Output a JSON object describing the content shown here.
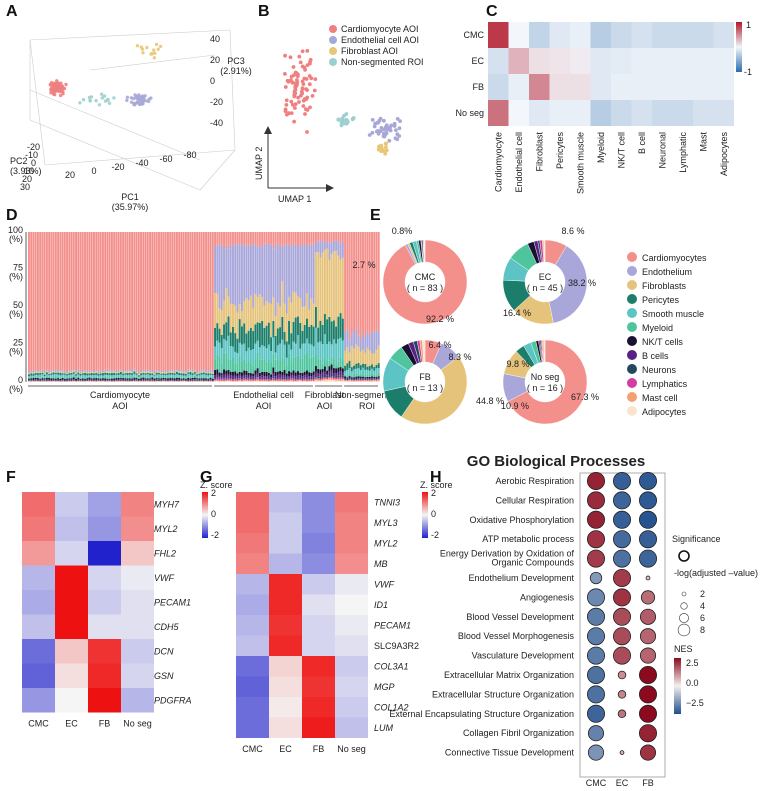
{
  "panels": {
    "A": "A",
    "B": "B",
    "C": "C",
    "D": "D",
    "E": "E",
    "F": "F",
    "G": "G",
    "H": "H"
  },
  "colors": {
    "cmc": "#F08080",
    "ec": "#A8A8D8",
    "fb": "#E8C878",
    "nonseg": "#9ECFD0",
    "cardiomyocytes": "#F4908C",
    "endothelium": "#A9A7DA",
    "fibroblasts": "#E5C37A",
    "pericytes": "#1B7E6A",
    "smooth_muscle": "#5CC4C4",
    "myeloid": "#4FC59E",
    "nkt": "#1A1030",
    "bcells": "#5B1F87",
    "neurons": "#24485E",
    "lymphatics": "#D23FA0",
    "mast": "#F4A070",
    "adipocytes": "#FBE3D0"
  },
  "chart_data": [
    {
      "panel": "A",
      "type": "scatter",
      "axis_labels": {
        "pc1": "PC1\n(35.97%)",
        "pc2": "PC2\n(3.93%)",
        "pc3": "PC3\n(2.91%)"
      },
      "pc1_ticks": [
        "20",
        "0",
        "-20",
        "-40",
        "-60",
        "-80"
      ],
      "pc2_ticks": [
        "-20",
        "-10",
        "0",
        "10",
        "20",
        "30"
      ],
      "pc3_ticks": [
        "40",
        "20",
        "0",
        "-20",
        "-40"
      ],
      "groups": [
        {
          "name": "Cardiomyocyte AOI",
          "n": 83,
          "center": [
            45,
            0,
            -5
          ]
        },
        {
          "name": "Endothelial cell AOI",
          "n": 45,
          "center": [
            -30,
            0,
            0
          ]
        },
        {
          "name": "Fibroblast AOI",
          "n": 13,
          "center": [
            -45,
            0,
            25
          ]
        },
        {
          "name": "Non-segmented ROI",
          "n": 16,
          "center": [
            -10,
            0,
            0
          ]
        }
      ]
    },
    {
      "panel": "B",
      "type": "scatter",
      "xlabel": "UMAP 1",
      "ylabel": "UMAP 2",
      "legend": [
        "Cardiomyocyte AOI",
        "Endothelial cell AOI",
        "Fibroblast AOI",
        "Non-segmented ROI"
      ],
      "legend_position": "top-right"
    },
    {
      "panel": "C",
      "type": "heatmap",
      "rows": [
        "CMC",
        "EC",
        "FB",
        "No seg"
      ],
      "columns": [
        "Cardiomyocyte",
        "Endothelial cell",
        "Fibroblast",
        "Pericytes",
        "Smooth muscle",
        "Myeloid",
        "NK/T cell",
        "B cell",
        "Neuronal",
        "Lymphatic",
        "Mast",
        "Adipocytes"
      ],
      "values": [
        [
          0.85,
          0.0,
          -0.25,
          -0.1,
          -0.05,
          -0.3,
          -0.2,
          -0.15,
          -0.2,
          -0.2,
          -0.2,
          -0.15
        ],
        [
          -0.15,
          0.3,
          0.1,
          0.08,
          0.05,
          -0.1,
          -0.08,
          -0.05,
          -0.05,
          -0.05,
          -0.05,
          -0.05
        ],
        [
          -0.2,
          -0.05,
          0.5,
          0.1,
          0.1,
          -0.1,
          -0.05,
          -0.05,
          -0.05,
          -0.05,
          -0.05,
          -0.05
        ],
        [
          0.6,
          0.0,
          -0.1,
          -0.05,
          -0.05,
          -0.3,
          -0.2,
          -0.15,
          -0.2,
          -0.2,
          -0.15,
          -0.15
        ]
      ],
      "scale": {
        "max": "1",
        "min": "-1"
      }
    },
    {
      "panel": "D",
      "type": "bar",
      "stacked": true,
      "y_ticks": [
        "100\n(%)",
        "75\n(%)",
        "50\n(%)",
        "25\n(%)",
        "0\n(%)"
      ],
      "group_labels": [
        "Cardiomyocyte\nAOI",
        "Endothelial cell\nAOI",
        "Fibroblast\nAOI",
        "Non-segmented\nROI"
      ],
      "group_sizes": [
        83,
        45,
        13,
        16
      ]
    },
    {
      "panel": "E",
      "type": "pie",
      "legend": [
        "Cardiomyocytes",
        "Endothelium",
        "Fibroblasts",
        "Pericytes",
        "Smooth muscle",
        "Myeloid",
        "NK/T cells",
        "B cells",
        "Neurons",
        "Lymphatics",
        "Mast cell",
        "Adipocytes"
      ],
      "donuts": [
        {
          "name": "CMC",
          "n_label": "( n = 83 )",
          "values": [
            92.2,
            1.0,
            0.8,
            1.2,
            1.5,
            0.8,
            0.9,
            0.3,
            0.5,
            0.2,
            0.3,
            0.3
          ],
          "labels": [
            {
              "text": "92.2 %"
            },
            {
              "text": "0.8%"
            },
            {
              "text": "2.7 %"
            }
          ]
        },
        {
          "name": "EC",
          "n_label": "( n = 45 )",
          "values": [
            8.6,
            38.2,
            16.4,
            12.5,
            9.0,
            8.5,
            2.5,
            1.5,
            0.8,
            1.0,
            0.5,
            0.5
          ],
          "labels": [
            {
              "text": "8.6 %"
            },
            {
              "text": "38.2 %"
            },
            {
              "text": "16.4 %"
            }
          ]
        },
        {
          "name": "FB",
          "n_label": "( n = 13 )",
          "values": [
            6.4,
            8.3,
            44.8,
            12.0,
            13.0,
            6.0,
            3.0,
            2.0,
            1.5,
            1.0,
            1.0,
            1.0
          ],
          "labels": [
            {
              "text": "6.4 %"
            },
            {
              "text": "8.3 %"
            },
            {
              "text": "44.8 %"
            }
          ]
        },
        {
          "name": "No seg",
          "n_label": "( n = 16 )",
          "values": [
            67.3,
            10.9,
            9.8,
            3.5,
            3.0,
            2.0,
            1.0,
            0.5,
            0.5,
            0.4,
            0.6,
            0.5
          ],
          "labels": [
            {
              "text": "67.3 %"
            },
            {
              "text": "10.9 %"
            },
            {
              "text": "9.8 %"
            }
          ]
        }
      ]
    },
    {
      "panel": "F",
      "type": "heatmap",
      "columns": [
        "CMC",
        "EC",
        "FB",
        "No seg"
      ],
      "rows": [
        "MYH7",
        "MYL2",
        "FHL2",
        "VWF",
        "PECAM1",
        "CDH5",
        "DCN",
        "GSN",
        "PDGFRA"
      ],
      "values": [
        [
          1.2,
          -0.4,
          -0.8,
          1.0
        ],
        [
          1.1,
          -0.5,
          -0.9,
          0.9
        ],
        [
          0.8,
          -0.3,
          -2.0,
          0.4
        ],
        [
          -0.6,
          2.0,
          -0.3,
          -0.1
        ],
        [
          -0.7,
          2.0,
          -0.4,
          -0.2
        ],
        [
          -0.5,
          2.0,
          -0.2,
          -0.2
        ],
        [
          -1.3,
          0.4,
          1.7,
          -0.4
        ],
        [
          -1.4,
          0.2,
          1.8,
          -0.3
        ],
        [
          -0.9,
          0.0,
          2.0,
          -0.6
        ]
      ],
      "scale_title": "Z. score",
      "scale_ticks": [
        "2",
        "0",
        "-2"
      ]
    },
    {
      "panel": "G",
      "type": "heatmap",
      "columns": [
        "CMC",
        "EC",
        "FB",
        "No seg"
      ],
      "rows": [
        "TNNI3",
        "MYL3",
        "MYL2",
        "MB",
        "VWF",
        "ID1",
        "PECAM1",
        "SLC9A3R2",
        "COL3A1",
        "MGP",
        "COL1A2",
        "LUM"
      ],
      "italic_rows": [
        "TNNI3",
        "MYL3",
        "MYL2",
        "MB",
        "VWF",
        "ID1",
        "PECAM1",
        "COL3A1",
        "MGP",
        "COL1A2",
        "LUM"
      ],
      "values": [
        [
          1.2,
          -0.5,
          -1.0,
          1.1
        ],
        [
          1.2,
          -0.4,
          -1.0,
          1.0
        ],
        [
          1.1,
          -0.4,
          -1.1,
          1.0
        ],
        [
          1.0,
          -0.6,
          -1.0,
          0.9
        ],
        [
          -0.6,
          1.8,
          -0.4,
          -0.1
        ],
        [
          -0.7,
          1.8,
          -0.2,
          0.0
        ],
        [
          -0.6,
          1.7,
          -0.3,
          -0.1
        ],
        [
          -0.5,
          1.8,
          -0.3,
          -0.2
        ],
        [
          -1.3,
          0.3,
          1.8,
          -0.4
        ],
        [
          -1.4,
          0.2,
          1.7,
          -0.3
        ],
        [
          -1.3,
          0.1,
          1.8,
          -0.4
        ],
        [
          -1.3,
          0.2,
          1.9,
          -0.5
        ]
      ],
      "scale_title": "Z. score",
      "scale_ticks": [
        "2",
        "0",
        "-2"
      ]
    },
    {
      "panel": "H",
      "type": "scatter",
      "title": "GO Biological Processes",
      "columns": [
        "CMC",
        "EC",
        "FB"
      ],
      "terms": [
        "Aerobic Respiration",
        "Cellular Respiration",
        "Oxidative Phosphorylation",
        "ATP metabolic process",
        "Energy Derivation by Oxidation of\nOrganic Compounds",
        "Endothelium Development",
        "Angiogenesis",
        "Blood Vessel Development",
        "Blood Vessel Morphogenesis",
        "Vasculature Development",
        "Extracellular Matrix Organization",
        "Extracellular Structure Organization",
        "External Encapsulating Structure Organization",
        "Collagen Fibril Organization",
        "Connective Tissue Development"
      ],
      "nes": [
        [
          2.5,
          -2.5,
          -2.6
        ],
        [
          2.4,
          -2.4,
          -2.6
        ],
        [
          2.5,
          -2.5,
          -2.7
        ],
        [
          2.3,
          -2.3,
          -2.5
        ],
        [
          2.2,
          -2.2,
          -2.4
        ],
        [
          -1.5,
          2.2,
          0.5
        ],
        [
          -1.8,
          2.3,
          1.6
        ],
        [
          -2.0,
          2.0,
          1.8
        ],
        [
          -2.0,
          2.0,
          1.7
        ],
        [
          -2.0,
          2.0,
          1.7
        ],
        [
          -2.2,
          1.2,
          2.8
        ],
        [
          -2.2,
          1.3,
          2.8
        ],
        [
          -2.4,
          1.5,
          2.8
        ],
        [
          -1.9,
          null,
          2.5
        ],
        [
          -1.6,
          0.8,
          2.3
        ]
      ],
      "size": [
        [
          8,
          8,
          8
        ],
        [
          8,
          8,
          8
        ],
        [
          8,
          8,
          8
        ],
        [
          8,
          8,
          8
        ],
        [
          8,
          8,
          8
        ],
        [
          5,
          8,
          1
        ],
        [
          8,
          8,
          6
        ],
        [
          8,
          8,
          7
        ],
        [
          8,
          8,
          7
        ],
        [
          8,
          8,
          7
        ],
        [
          8,
          3,
          8
        ],
        [
          8,
          3,
          8
        ],
        [
          8,
          3,
          8
        ],
        [
          7,
          null,
          8
        ],
        [
          7,
          1,
          7
        ]
      ],
      "legend_significance": "Significance",
      "legend_size_title": "-log(adjusted –value)",
      "size_ticks": [
        "2",
        "4",
        "6",
        "8"
      ],
      "legend_color_title": "NES",
      "color_ticks": [
        "2.5",
        "0.0",
        "−2.5"
      ]
    }
  ]
}
